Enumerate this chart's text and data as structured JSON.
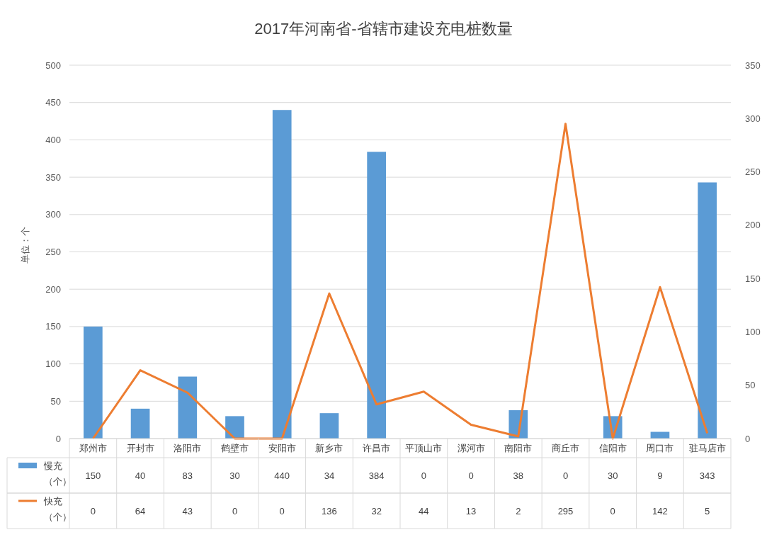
{
  "chart_data": {
    "type": "bar",
    "title": "2017年河南省-省辖市建设充电桩数量",
    "ylabel": "单位：个",
    "categories": [
      "郑州市",
      "开封市",
      "洛阳市",
      "鹤壁市",
      "安阳市",
      "新乡市",
      "许昌市",
      "平顶山市",
      "漯河市",
      "南阳市",
      "商丘市",
      "信阳市",
      "周口市",
      "驻马店市"
    ],
    "series": [
      {
        "name": "慢充（个）",
        "color": "#5b9bd5",
        "values": [
          150,
          40,
          83,
          30,
          440,
          34,
          384,
          0,
          0,
          38,
          0,
          30,
          9,
          343
        ]
      },
      {
        "name": "快充（个）",
        "type": "line",
        "axis": "y2",
        "color": "#ed7d31",
        "values": [
          0,
          64,
          43,
          0,
          0,
          136,
          32,
          44,
          13,
          2,
          295,
          0,
          142,
          5
        ]
      }
    ],
    "ylim": [
      0,
      500
    ],
    "yticks": [
      0,
      50,
      100,
      150,
      200,
      250,
      300,
      350,
      400,
      450,
      500
    ],
    "y2lim": [
      0,
      350
    ],
    "y2ticks": [
      0,
      50,
      100,
      150,
      200,
      250,
      300,
      350
    ],
    "grid": "y",
    "legend": "bottom",
    "marker": "none",
    "line_style": "solid",
    "data_labels": true
  }
}
